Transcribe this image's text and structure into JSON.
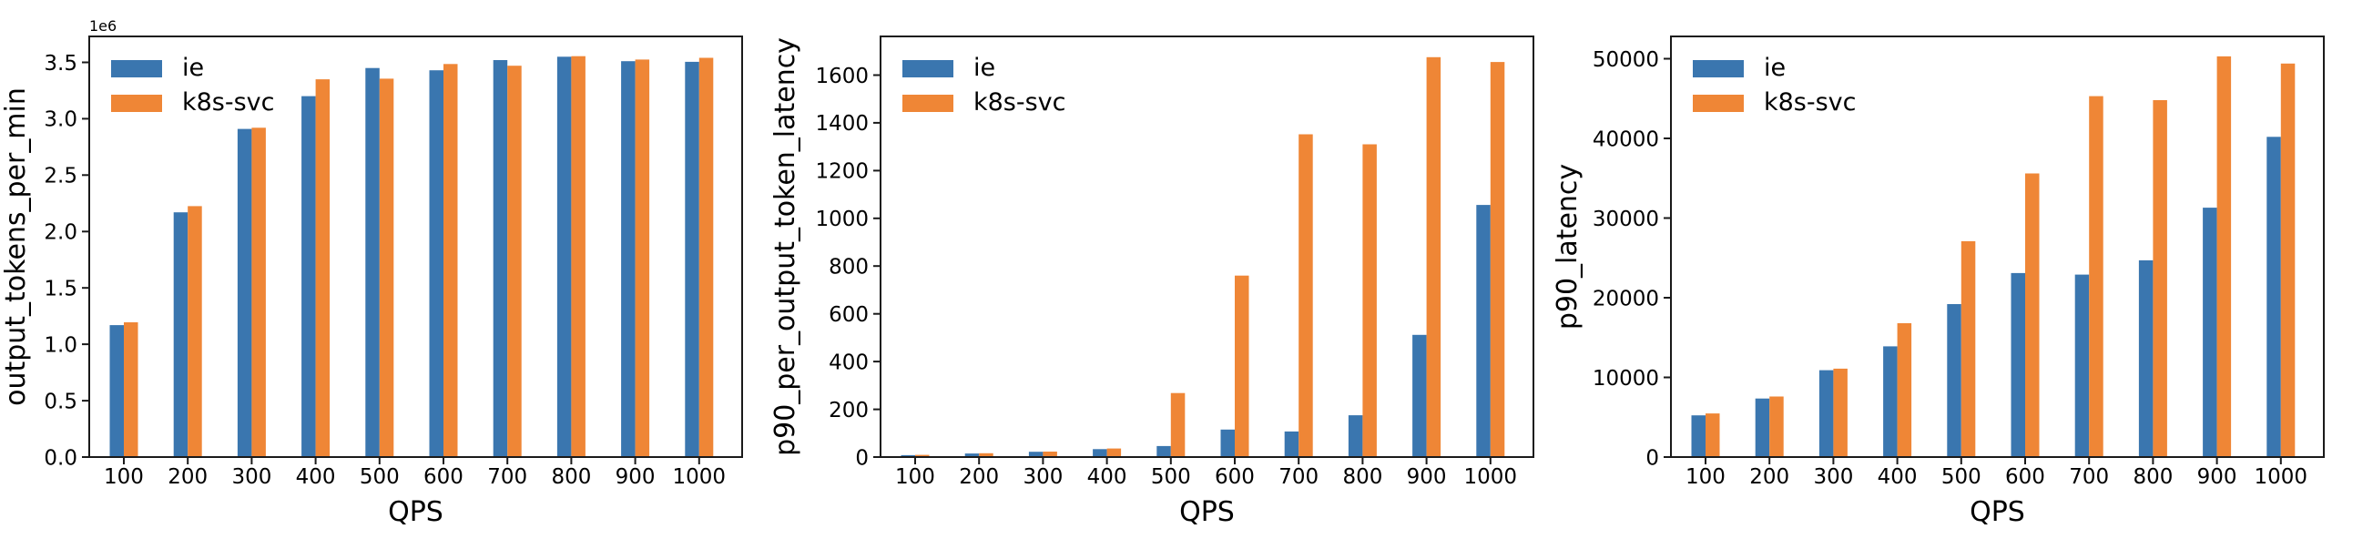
{
  "figure": {
    "background": "#ffffff",
    "axes_color": "#1a1a1a",
    "text_color": "#000000"
  },
  "series_colors": {
    "ie": "#3A76AF",
    "k8s-svc": "#EF8636"
  },
  "chart_data": [
    {
      "type": "bar",
      "title": "",
      "xlabel": "QPS",
      "ylabel": "output_tokens_per_min",
      "offset_text": "1e6",
      "legend_position": "upper left",
      "grid": false,
      "categories": [
        100,
        200,
        300,
        400,
        500,
        600,
        700,
        800,
        900,
        1000
      ],
      "series": [
        {
          "name": "ie",
          "color": "#3A76AF",
          "values": [
            1170000,
            2170000,
            2910000,
            3200000,
            3450000,
            3430000,
            3520000,
            3550000,
            3510000,
            3505000
          ]
        },
        {
          "name": "k8s-svc",
          "color": "#EF8636",
          "values": [
            1195000,
            2225000,
            2920000,
            3350000,
            3355000,
            3485000,
            3470000,
            3555000,
            3525000,
            3540000
          ]
        }
      ],
      "ylim": [
        0,
        3730000
      ],
      "yticks": [
        0,
        500000,
        1000000,
        1500000,
        2000000,
        2500000,
        3000000,
        3500000
      ],
      "ytick_labels": [
        "0.0",
        "0.5",
        "1.0",
        "1.5",
        "2.0",
        "2.5",
        "3.0",
        "3.5"
      ]
    },
    {
      "type": "bar",
      "title": "",
      "xlabel": "QPS",
      "ylabel": "p90_per_output_token_latency",
      "offset_text": "",
      "legend_position": "upper left",
      "grid": false,
      "categories": [
        100,
        200,
        300,
        400,
        500,
        600,
        700,
        800,
        900,
        1000
      ],
      "series": [
        {
          "name": "ie",
          "color": "#3A76AF",
          "values": [
            8,
            15,
            22,
            33,
            46,
            115,
            107,
            175,
            512,
            1056
          ]
        },
        {
          "name": "k8s-svc",
          "color": "#EF8636",
          "values": [
            9,
            16,
            23,
            36,
            268,
            760,
            1352,
            1310,
            1675,
            1655
          ]
        }
      ],
      "ylim": [
        0,
        1762
      ],
      "yticks": [
        0,
        200,
        400,
        600,
        800,
        1000,
        1200,
        1400,
        1600
      ],
      "ytick_labels": [
        "0",
        "200",
        "400",
        "600",
        "800",
        "1000",
        "1200",
        "1400",
        "1600"
      ]
    },
    {
      "type": "bar",
      "title": "",
      "xlabel": "QPS",
      "ylabel": "p90_latency",
      "offset_text": "",
      "legend_position": "upper left",
      "grid": false,
      "categories": [
        100,
        200,
        300,
        400,
        500,
        600,
        700,
        800,
        900,
        1000
      ],
      "series": [
        {
          "name": "ie",
          "color": "#3A76AF",
          "values": [
            5230,
            7350,
            10900,
            13900,
            19200,
            23100,
            22900,
            24700,
            31300,
            40200
          ]
        },
        {
          "name": "k8s-svc",
          "color": "#EF8636",
          "values": [
            5470,
            7600,
            11100,
            16800,
            27100,
            35600,
            45300,
            44800,
            50300,
            49400
          ]
        }
      ],
      "ylim": [
        0,
        52800
      ],
      "yticks": [
        0,
        10000,
        20000,
        30000,
        40000,
        50000
      ],
      "ytick_labels": [
        "0",
        "10000",
        "20000",
        "30000",
        "40000",
        "50000"
      ]
    }
  ]
}
